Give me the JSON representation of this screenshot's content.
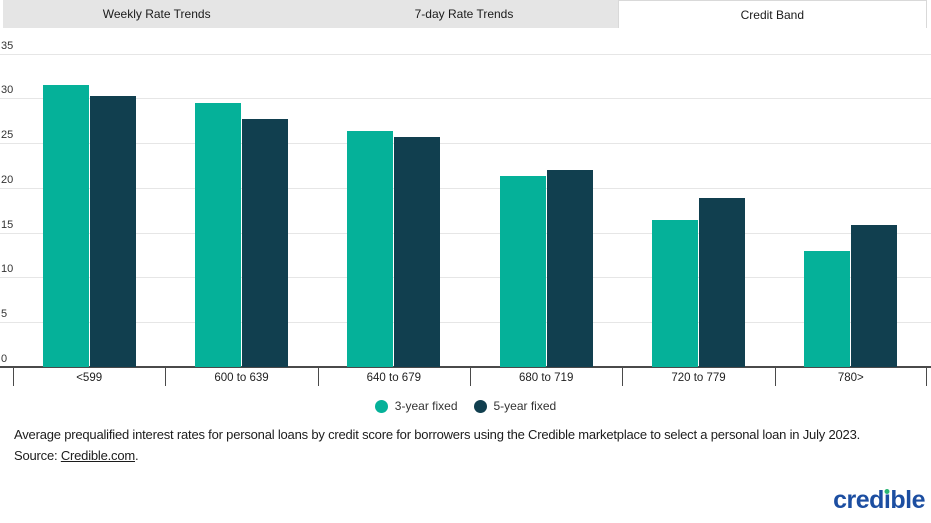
{
  "tabs": [
    {
      "label": "Weekly Rate Trends",
      "active": false
    },
    {
      "label": "7-day Rate Trends",
      "active": false
    },
    {
      "label": "Credit Band",
      "active": true
    }
  ],
  "chart_data": {
    "type": "bar",
    "categories": [
      "<599",
      "600 to 639",
      "640 to 679",
      "680 to 719",
      "720 to 779",
      "780>"
    ],
    "series": [
      {
        "name": "3-year fixed",
        "color": "#05B199",
        "values": [
          31.5,
          29.5,
          26.3,
          21.3,
          16.4,
          12.9
        ]
      },
      {
        "name": "5-year fixed",
        "color": "#113F4F",
        "values": [
          30.2,
          27.7,
          25.7,
          22.0,
          18.9,
          15.9
        ]
      }
    ],
    "title": "",
    "xlabel": "",
    "ylabel": "",
    "ylim": [
      0,
      35
    ],
    "yticks": [
      0,
      5,
      10,
      15,
      20,
      25,
      30,
      35
    ],
    "grid": "horizontal",
    "legend_position": "bottom"
  },
  "caption": {
    "line1": "Average prequalified interest rates for personal loans by credit score for borrowers using the Credible marketplace to select a personal loan in July 2023.",
    "source_prefix": "Source: ",
    "source_link": "Credible.com",
    "source_suffix": "."
  },
  "logo": {
    "text": "credible",
    "part1": "cred",
    "part_i": "ı",
    "part2": "ble"
  },
  "colors": {
    "teal": "#05B199",
    "dark_teal": "#113F4F",
    "gridline": "#E6E6E6",
    "axis": "#4A4A4A",
    "tab_bg": "#E5E5E5",
    "tab_border": "#D9D9D9",
    "logo_blue": "#1C4EA1",
    "logo_green": "#2BB673"
  }
}
